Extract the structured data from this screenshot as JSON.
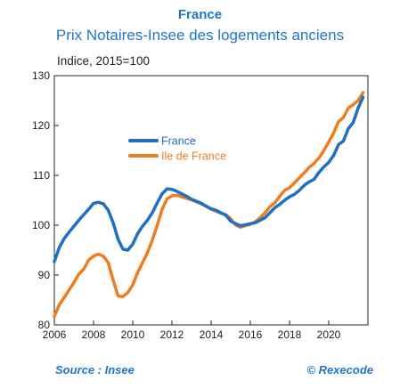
{
  "header": {
    "title": "France",
    "subtitle": "Prix Notaires-Insee des logements anciens"
  },
  "footer": {
    "source": "Source : Insee",
    "credit": "© Rexecode"
  },
  "chart_data": {
    "type": "line",
    "title": "France",
    "subtitle": "Prix Notaires-Insee des logements anciens",
    "ylabel": "Indice, 2015=100",
    "xlabel": "",
    "xlim": [
      2006,
      2022
    ],
    "ylim": [
      80,
      130
    ],
    "x_ticks": [
      "2006",
      "2008",
      "2010",
      "2012",
      "2014",
      "2016",
      "2018",
      "2020"
    ],
    "y_ticks": [
      "80",
      "90",
      "100",
      "110",
      "120",
      "130"
    ],
    "x_tick_values": [
      2006,
      2008,
      2010,
      2012,
      2014,
      2016,
      2018,
      2020
    ],
    "y_tick_values": [
      80,
      90,
      100,
      110,
      120,
      130
    ],
    "grid": false,
    "legend": "upper-left",
    "series": [
      {
        "name": "France",
        "color": "#1f6fc4",
        "points": [
          [
            2006.0,
            92.7
          ],
          [
            2006.25,
            95.5
          ],
          [
            2006.5,
            97.3
          ],
          [
            2006.75,
            98.6
          ],
          [
            2007.0,
            99.8
          ],
          [
            2007.25,
            101.0
          ],
          [
            2007.5,
            102.1
          ],
          [
            2007.75,
            103.2
          ],
          [
            2008.0,
            104.4
          ],
          [
            2008.25,
            104.6
          ],
          [
            2008.5,
            104.3
          ],
          [
            2008.75,
            103.0
          ],
          [
            2009.0,
            100.5
          ],
          [
            2009.25,
            97.2
          ],
          [
            2009.5,
            95.2
          ],
          [
            2009.75,
            95.0
          ],
          [
            2010.0,
            96.2
          ],
          [
            2010.25,
            98.3
          ],
          [
            2010.5,
            99.8
          ],
          [
            2010.75,
            101.0
          ],
          [
            2011.0,
            102.5
          ],
          [
            2011.25,
            104.5
          ],
          [
            2011.5,
            106.3
          ],
          [
            2011.75,
            107.3
          ],
          [
            2012.0,
            107.2
          ],
          [
            2012.25,
            106.8
          ],
          [
            2012.5,
            106.3
          ],
          [
            2012.75,
            105.8
          ],
          [
            2013.0,
            105.2
          ],
          [
            2013.25,
            104.8
          ],
          [
            2013.5,
            104.4
          ],
          [
            2013.75,
            103.8
          ],
          [
            2014.0,
            103.3
          ],
          [
            2014.25,
            103.0
          ],
          [
            2014.5,
            102.5
          ],
          [
            2014.75,
            102.0
          ],
          [
            2015.0,
            100.8
          ],
          [
            2015.25,
            100.3
          ],
          [
            2015.5,
            99.9
          ],
          [
            2015.75,
            100.1
          ],
          [
            2016.0,
            100.3
          ],
          [
            2016.25,
            100.5
          ],
          [
            2016.5,
            101.0
          ],
          [
            2016.75,
            101.5
          ],
          [
            2017.0,
            102.5
          ],
          [
            2017.25,
            103.5
          ],
          [
            2017.5,
            104.2
          ],
          [
            2017.75,
            105.0
          ],
          [
            2018.0,
            105.7
          ],
          [
            2018.25,
            106.2
          ],
          [
            2018.5,
            107.0
          ],
          [
            2018.75,
            108.0
          ],
          [
            2019.0,
            108.7
          ],
          [
            2019.25,
            109.2
          ],
          [
            2019.5,
            110.6
          ],
          [
            2019.75,
            111.7
          ],
          [
            2020.0,
            112.6
          ],
          [
            2020.25,
            114.0
          ],
          [
            2020.5,
            116.2
          ],
          [
            2020.75,
            116.9
          ],
          [
            2021.0,
            119.4
          ],
          [
            2021.25,
            120.6
          ],
          [
            2021.5,
            123.5
          ],
          [
            2021.75,
            125.7
          ]
        ]
      },
      {
        "name": "Ile de France",
        "color": "#ee7d22",
        "points": [
          [
            2006.0,
            81.7
          ],
          [
            2006.25,
            84.0
          ],
          [
            2006.5,
            85.5
          ],
          [
            2006.75,
            87.0
          ],
          [
            2007.0,
            88.5
          ],
          [
            2007.25,
            90.2
          ],
          [
            2007.5,
            91.2
          ],
          [
            2007.75,
            93.0
          ],
          [
            2008.0,
            93.8
          ],
          [
            2008.25,
            94.2
          ],
          [
            2008.5,
            93.8
          ],
          [
            2008.75,
            92.5
          ],
          [
            2009.0,
            89.0
          ],
          [
            2009.25,
            85.8
          ],
          [
            2009.5,
            85.7
          ],
          [
            2009.75,
            86.5
          ],
          [
            2010.0,
            88.0
          ],
          [
            2010.25,
            90.5
          ],
          [
            2010.5,
            92.5
          ],
          [
            2010.75,
            94.5
          ],
          [
            2011.0,
            97.0
          ],
          [
            2011.25,
            100.0
          ],
          [
            2011.5,
            103.2
          ],
          [
            2011.75,
            105.3
          ],
          [
            2012.0,
            105.9
          ],
          [
            2012.25,
            106.0
          ],
          [
            2012.5,
            105.7
          ],
          [
            2012.75,
            105.4
          ],
          [
            2013.0,
            105.1
          ],
          [
            2013.25,
            104.7
          ],
          [
            2013.5,
            104.3
          ],
          [
            2013.75,
            103.8
          ],
          [
            2014.0,
            103.2
          ],
          [
            2014.25,
            102.8
          ],
          [
            2014.5,
            102.4
          ],
          [
            2014.75,
            102.1
          ],
          [
            2015.0,
            101.3
          ],
          [
            2015.25,
            100.0
          ],
          [
            2015.5,
            99.6
          ],
          [
            2015.75,
            99.9
          ],
          [
            2016.0,
            100.2
          ],
          [
            2016.25,
            100.7
          ],
          [
            2016.5,
            101.5
          ],
          [
            2016.75,
            102.5
          ],
          [
            2017.0,
            103.7
          ],
          [
            2017.25,
            104.5
          ],
          [
            2017.5,
            105.8
          ],
          [
            2017.75,
            107.0
          ],
          [
            2018.0,
            107.5
          ],
          [
            2018.25,
            108.5
          ],
          [
            2018.5,
            109.5
          ],
          [
            2018.75,
            110.5
          ],
          [
            2019.0,
            111.6
          ],
          [
            2019.25,
            112.4
          ],
          [
            2019.5,
            113.5
          ],
          [
            2019.75,
            115.0
          ],
          [
            2020.0,
            116.7
          ],
          [
            2020.25,
            118.5
          ],
          [
            2020.5,
            120.8
          ],
          [
            2020.75,
            121.6
          ],
          [
            2021.0,
            123.5
          ],
          [
            2021.25,
            124.2
          ],
          [
            2021.5,
            125.0
          ],
          [
            2021.75,
            126.6
          ]
        ]
      }
    ]
  }
}
